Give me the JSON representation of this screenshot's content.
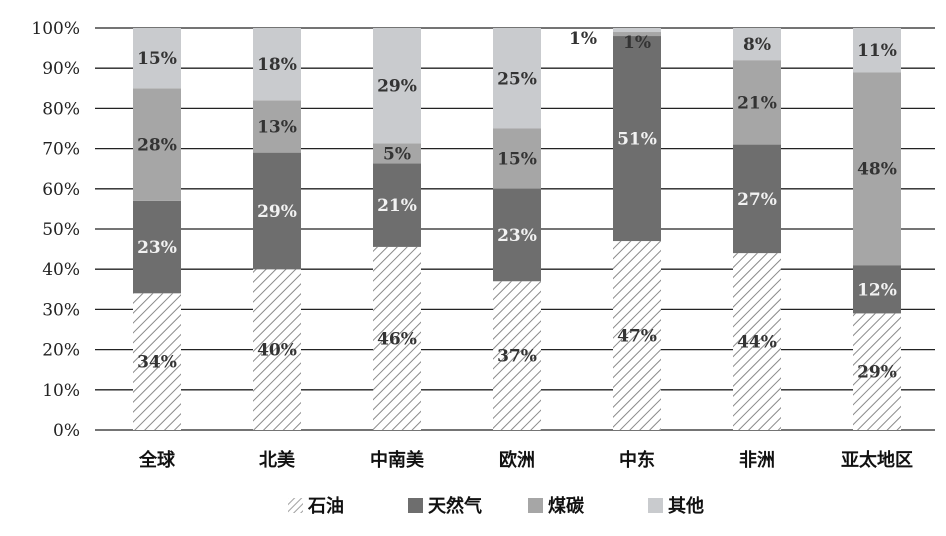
{
  "chart_data": {
    "type": "bar",
    "stacked": true,
    "percent": true,
    "categories": [
      "全球",
      "北美",
      "中南美",
      "欧洲",
      "中东",
      "非洲",
      "亚太地区"
    ],
    "series": [
      {
        "name": "石油",
        "values": [
          34,
          40,
          46,
          37,
          47,
          44,
          29
        ],
        "labels": [
          "34%",
          "40%",
          "46%",
          "37%",
          "47%",
          "44%",
          "29%"
        ],
        "pattern": "hatch",
        "color": "#ffffff"
      },
      {
        "name": "天然气",
        "values": [
          23,
          29,
          21,
          23,
          51,
          27,
          12
        ],
        "labels": [
          "23%",
          "29%",
          "21%",
          "23%",
          "51%",
          "27%",
          "12%"
        ],
        "pattern": "solid",
        "color": "#6e6e6e"
      },
      {
        "name": "煤碳",
        "values": [
          28,
          13,
          5,
          15,
          1,
          21,
          48
        ],
        "labels": [
          "28%",
          "13%",
          "5%",
          "15%",
          "1%",
          "21%",
          "48%"
        ],
        "pattern": "solid",
        "color": "#a6a6a6"
      },
      {
        "name": "其他",
        "values": [
          15,
          18,
          29,
          25,
          1,
          8,
          11
        ],
        "labels": [
          "15%",
          "18%",
          "29%",
          "25%",
          "1%",
          "8%",
          "11%"
        ],
        "pattern": "solid",
        "color": "#c9cbce"
      }
    ],
    "yticks": [
      "0%",
      "10%",
      "20%",
      "30%",
      "40%",
      "50%",
      "60%",
      "70%",
      "80%",
      "90%",
      "100%"
    ],
    "ylim": [
      0,
      100
    ],
    "grid": true,
    "legend_position": "bottom",
    "colors": {
      "hatch_line": "#8a8a8a",
      "grid": "#222222",
      "label_on_dark": "#f2f2f2",
      "label_on_light": "#333333"
    }
  }
}
